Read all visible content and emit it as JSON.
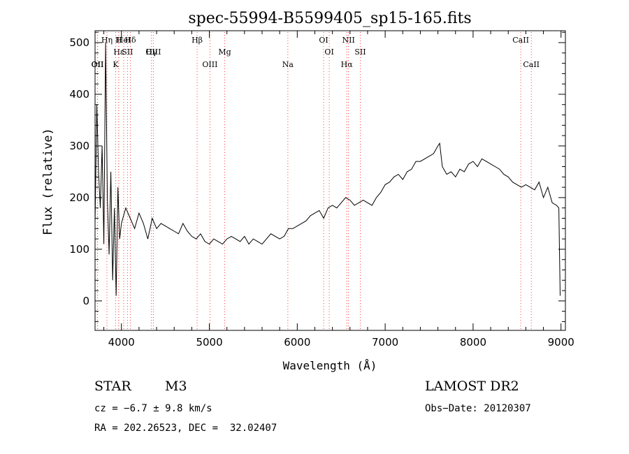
{
  "chart_data": {
    "type": "line",
    "title": "spec-55994-B5599405_sp15-165.fits",
    "xlabel": "Wavelength (Å)",
    "ylabel": "Flux (relative)",
    "xlim": [
      3700,
      9050
    ],
    "ylim": [
      -57,
      523
    ],
    "xticks": [
      4000,
      5000,
      6000,
      7000,
      8000,
      9000
    ],
    "yticks": [
      0,
      100,
      200,
      300,
      400,
      500
    ],
    "grid": false,
    "legend": "none",
    "line_color": "#000000",
    "series": [
      {
        "x": [
          3700,
          3720,
          3740,
          3760,
          3780,
          3800,
          3820,
          3840,
          3860,
          3880,
          3900,
          3920,
          3940,
          3960,
          3980,
          4000,
          4050,
          4100,
          4150,
          4200,
          4250,
          4300,
          4350,
          4400,
          4450,
          4500,
          4550,
          4600,
          4650,
          4700,
          4750,
          4800,
          4850,
          4900,
          4950,
          5000,
          5050,
          5100,
          5150,
          5200,
          5250,
          5300,
          5350,
          5400,
          5450,
          5500,
          5550,
          5600,
          5650,
          5700,
          5750,
          5800,
          5850,
          5900,
          5950,
          6000,
          6050,
          6100,
          6150,
          6200,
          6250,
          6300,
          6350,
          6400,
          6450,
          6500,
          6550,
          6600,
          6650,
          6700,
          6750,
          6800,
          6850,
          6900,
          6950,
          7000,
          7050,
          7100,
          7150,
          7200,
          7250,
          7300,
          7350,
          7400,
          7450,
          7500,
          7550,
          7600,
          7620,
          7650,
          7700,
          7750,
          7800,
          7850,
          7900,
          7950,
          8000,
          8050,
          8100,
          8150,
          8200,
          8250,
          8300,
          8350,
          8400,
          8450,
          8500,
          8550,
          8600,
          8650,
          8700,
          8750,
          8800,
          8850,
          8900,
          8950,
          8975,
          8990
        ],
        "y": [
          150,
          380,
          250,
          180,
          300,
          110,
          500,
          200,
          90,
          250,
          40,
          180,
          10,
          220,
          120,
          150,
          180,
          160,
          140,
          170,
          150,
          120,
          160,
          140,
          150,
          145,
          140,
          135,
          130,
          150,
          135,
          125,
          120,
          130,
          115,
          110,
          120,
          115,
          110,
          120,
          125,
          120,
          115,
          125,
          110,
          120,
          115,
          110,
          120,
          130,
          125,
          120,
          125,
          140,
          140,
          145,
          150,
          155,
          165,
          170,
          175,
          160,
          180,
          185,
          180,
          190,
          200,
          195,
          185,
          190,
          195,
          190,
          185,
          200,
          210,
          225,
          230,
          240,
          245,
          235,
          250,
          255,
          270,
          270,
          275,
          280,
          285,
          300,
          305,
          260,
          245,
          250,
          240,
          255,
          250,
          265,
          270,
          260,
          275,
          270,
          265,
          260,
          255,
          245,
          240,
          230,
          225,
          220,
          225,
          220,
          215,
          230,
          200,
          220,
          190,
          185,
          180,
          10
        ]
      }
    ],
    "line_labels": [
      {
        "name": "Hδ",
        "wave": 4102
      },
      {
        "name": "Hε",
        "wave": 3970
      },
      {
        "name": "K",
        "wave": 3934
      },
      {
        "name": "H",
        "wave": 3969
      },
      {
        "name": "Hγ",
        "wave": 4341
      },
      {
        "name": "OII",
        "wave": 3727
      },
      {
        "name": "HeI",
        "wave": 4026
      },
      {
        "name": "SII",
        "wave": 4069
      },
      {
        "name": "OII",
        "wave": 3729
      },
      {
        "name": "Hη",
        "wave": 3835
      },
      {
        "name": "OIII",
        "wave": 4363
      },
      {
        "name": "OIII",
        "wave": 5007
      },
      {
        "name": "Hβ",
        "wave": 4861
      },
      {
        "name": "Mg",
        "wave": 5175
      },
      {
        "name": "Na",
        "wave": 5893
      },
      {
        "name": "OI",
        "wave": 6300
      },
      {
        "name": "OI",
        "wave": 6364
      },
      {
        "name": "Hα",
        "wave": 6563
      },
      {
        "name": "NII",
        "wave": 6583
      },
      {
        "name": "SII",
        "wave": 6717
      },
      {
        "name": "CaII",
        "wave": 8662
      },
      {
        "name": "CaII",
        "wave": 8542
      }
    ]
  },
  "info": {
    "object_class": "STAR",
    "subclass": "M3",
    "redshift": "cz = −6.7 ± 9.8 km/s",
    "coords": "RA = 202.26523, DEC =  32.02407",
    "survey": "LAMOST DR2",
    "obs_date": "Obs−Date: 20120307"
  }
}
